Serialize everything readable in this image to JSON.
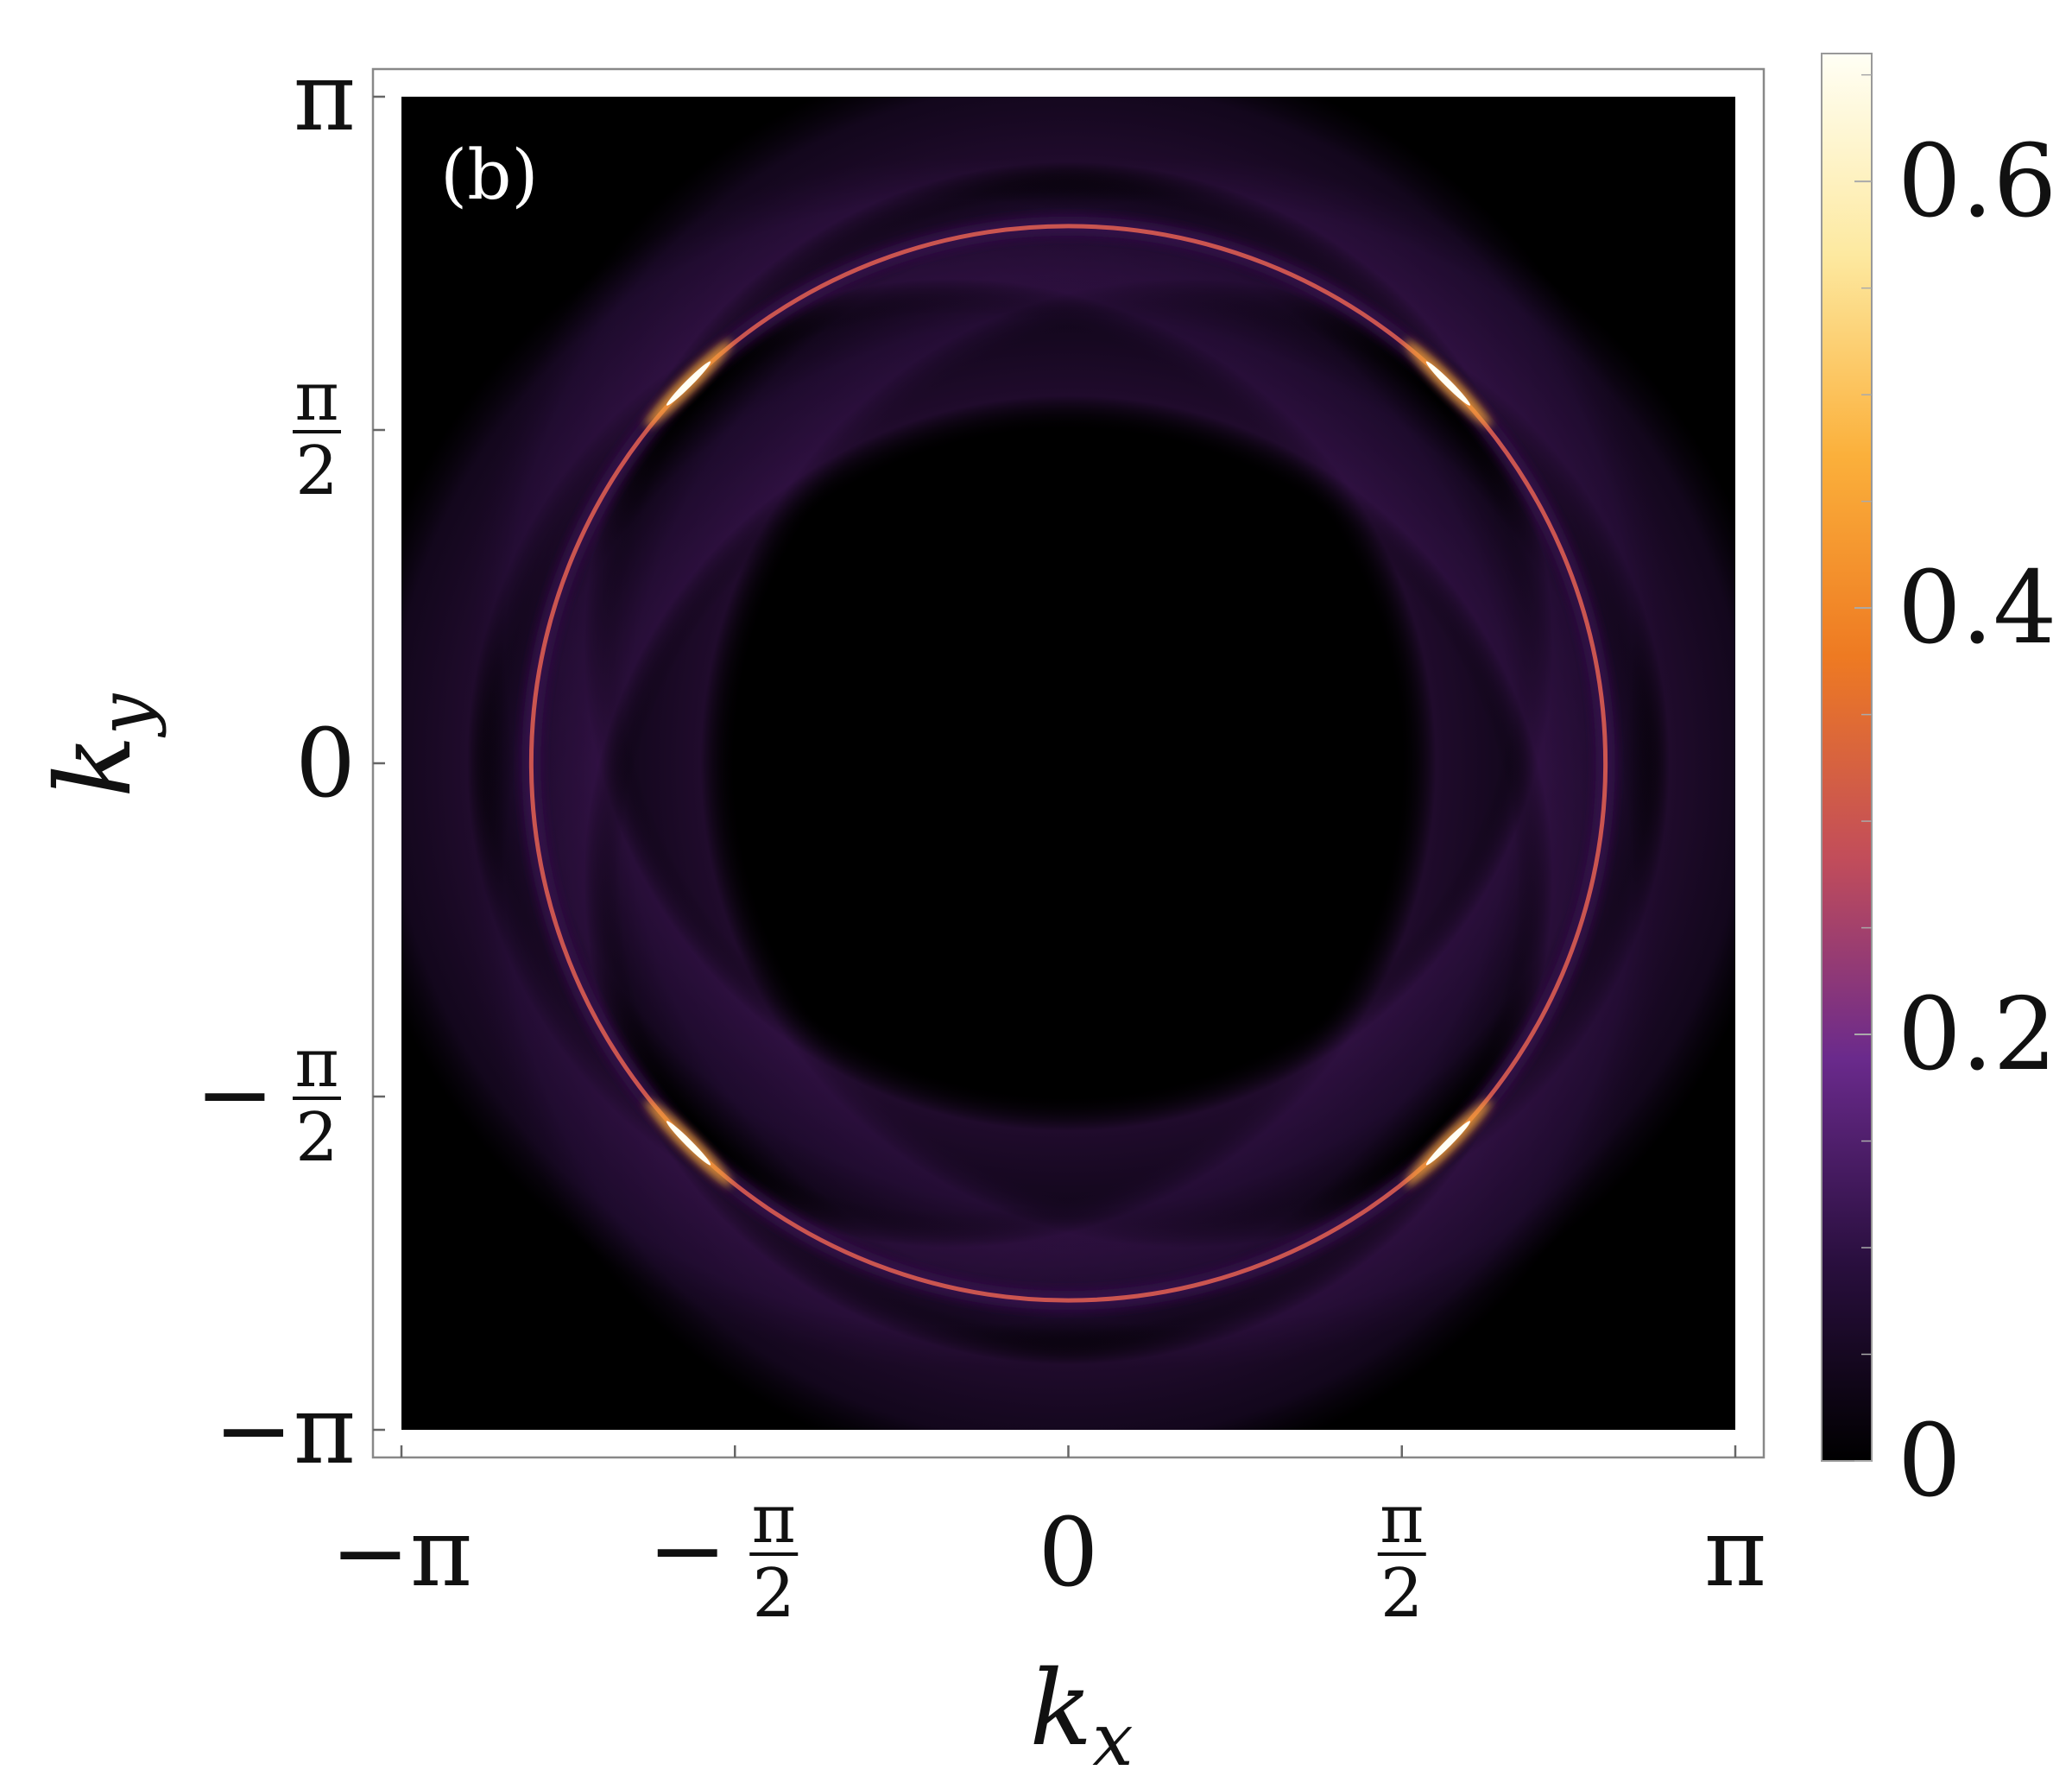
{
  "chart_data": {
    "type": "heatmap",
    "panel_label": "(b)",
    "xlabel": {
      "base": "k",
      "sub": "x"
    },
    "ylabel": {
      "base": "k",
      "sub": "y"
    },
    "xlim": [
      -3.14159,
      3.14159
    ],
    "ylim": [
      -3.14159,
      3.14159
    ],
    "x_ticks": [
      {
        "value": -3.14159,
        "label": "−π"
      },
      {
        "value": -1.5708,
        "label": "−",
        "num": "π",
        "den": "2"
      },
      {
        "value": 0,
        "label": "0"
      },
      {
        "value": 1.5708,
        "num": "π",
        "den": "2"
      },
      {
        "value": 3.14159,
        "label": "π"
      }
    ],
    "y_ticks": [
      {
        "value": 3.14159,
        "label": "π"
      },
      {
        "value": 1.5708,
        "num": "π",
        "den": "2"
      },
      {
        "value": 0,
        "label": "0"
      },
      {
        "value": -1.5708,
        "label": "−",
        "num": "π",
        "den": "2"
      },
      {
        "value": -3.14159,
        "label": "−π"
      }
    ],
    "colorbar": {
      "min": 0,
      "max": 0.66,
      "ticks": [
        {
          "value": 0,
          "label": "0"
        },
        {
          "value": 0.2,
          "label": "0.2"
        },
        {
          "value": 0.4,
          "label": "0.4"
        },
        {
          "value": 0.6,
          "label": "0.6"
        }
      ],
      "minor_step": 0.05,
      "colors": [
        "#000000",
        "#2a0f3f",
        "#6a2a8c",
        "#c24d5a",
        "#ee7a22",
        "#fbb03b",
        "#fde9a0",
        "#fffff5"
      ]
    },
    "features": {
      "main_ring": {
        "center": [
          0,
          0
        ],
        "radius": 2.53,
        "peak_value": 0.3,
        "hotspot_value": 0.66,
        "hotspot_angles_deg": [
          45,
          135,
          225,
          315
        ]
      },
      "halo_shells": {
        "radius": 3.1,
        "value": 0.07,
        "axis_directions": [
          "+kx",
          "-kx",
          "+ky",
          "-ky"
        ]
      }
    }
  }
}
